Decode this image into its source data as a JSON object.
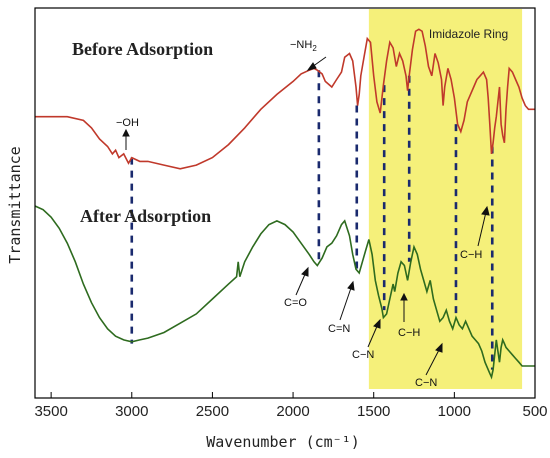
{
  "chart_data": {
    "type": "line",
    "xlabel": "Wavenumber (cm⁻¹)",
    "ylabel": "Transmittance",
    "xlim": [
      3600,
      500
    ],
    "x_reversed": true,
    "x_ticks": [
      3500,
      3000,
      2500,
      2000,
      1500,
      1000,
      500
    ],
    "y_ticks_shown": false,
    "grid": false,
    "region": {
      "label": "Imidazole Ring",
      "x_from": 1530,
      "x_to": 580,
      "color": "#f5f07a"
    },
    "series": [
      {
        "name": "Before Adsorption",
        "color": "#c0392b",
        "points": [
          [
            3600,
            0.52
          ],
          [
            3500,
            0.52
          ],
          [
            3400,
            0.52
          ],
          [
            3300,
            0.54
          ],
          [
            3250,
            0.58
          ],
          [
            3200,
            0.64
          ],
          [
            3150,
            0.68
          ],
          [
            3120,
            0.72
          ],
          [
            3100,
            0.7
          ],
          [
            3080,
            0.74
          ],
          [
            3050,
            0.72
          ],
          [
            3020,
            0.77
          ],
          [
            3000,
            0.74
          ],
          [
            2950,
            0.76
          ],
          [
            2900,
            0.76
          ],
          [
            2800,
            0.78
          ],
          [
            2700,
            0.8
          ],
          [
            2600,
            0.78
          ],
          [
            2500,
            0.74
          ],
          [
            2400,
            0.67
          ],
          [
            2300,
            0.58
          ],
          [
            2200,
            0.48
          ],
          [
            2100,
            0.4
          ],
          [
            2000,
            0.33
          ],
          [
            1950,
            0.29
          ],
          [
            1900,
            0.27
          ],
          [
            1870,
            0.26
          ],
          [
            1850,
            0.27
          ],
          [
            1820,
            0.29
          ],
          [
            1800,
            0.33
          ],
          [
            1760,
            0.36
          ],
          [
            1730,
            0.32
          ],
          [
            1700,
            0.28
          ],
          [
            1680,
            0.2
          ],
          [
            1650,
            0.18
          ],
          [
            1630,
            0.22
          ],
          [
            1610,
            0.36
          ],
          [
            1600,
            0.46
          ],
          [
            1590,
            0.4
          ],
          [
            1580,
            0.3
          ],
          [
            1560,
            0.2
          ],
          [
            1540,
            0.1
          ],
          [
            1520,
            0.12
          ],
          [
            1500,
            0.3
          ],
          [
            1480,
            0.44
          ],
          [
            1460,
            0.5
          ],
          [
            1440,
            0.35
          ],
          [
            1420,
            0.22
          ],
          [
            1400,
            0.12
          ],
          [
            1380,
            0.15
          ],
          [
            1360,
            0.25
          ],
          [
            1340,
            0.18
          ],
          [
            1320,
            0.22
          ],
          [
            1300,
            0.3
          ],
          [
            1290,
            0.38
          ],
          [
            1280,
            0.3
          ],
          [
            1260,
            0.16
          ],
          [
            1240,
            0.06
          ],
          [
            1220,
            0.05
          ],
          [
            1200,
            0.06
          ],
          [
            1180,
            0.14
          ],
          [
            1160,
            0.25
          ],
          [
            1140,
            0.3
          ],
          [
            1130,
            0.24
          ],
          [
            1120,
            0.18
          ],
          [
            1100,
            0.23
          ],
          [
            1080,
            0.32
          ],
          [
            1070,
            0.46
          ],
          [
            1060,
            0.36
          ],
          [
            1040,
            0.26
          ],
          [
            1020,
            0.32
          ],
          [
            1000,
            0.42
          ],
          [
            980,
            0.56
          ],
          [
            960,
            0.6
          ],
          [
            940,
            0.54
          ],
          [
            920,
            0.44
          ],
          [
            900,
            0.4
          ],
          [
            880,
            0.36
          ],
          [
            860,
            0.32
          ],
          [
            840,
            0.3
          ],
          [
            820,
            0.28
          ],
          [
            800,
            0.32
          ],
          [
            790,
            0.42
          ],
          [
            780,
            0.56
          ],
          [
            770,
            0.72
          ],
          [
            760,
            0.66
          ],
          [
            750,
            0.58
          ],
          [
            740,
            0.52
          ],
          [
            730,
            0.44
          ],
          [
            720,
            0.36
          ],
          [
            710,
            0.56
          ],
          [
            700,
            0.62
          ],
          [
            690,
            0.66
          ],
          [
            680,
            0.48
          ],
          [
            670,
            0.36
          ],
          [
            660,
            0.26
          ],
          [
            640,
            0.28
          ],
          [
            620,
            0.32
          ],
          [
            600,
            0.36
          ],
          [
            580,
            0.42
          ],
          [
            560,
            0.46
          ],
          [
            540,
            0.48
          ],
          [
            520,
            0.48
          ],
          [
            500,
            0.48
          ]
        ]
      },
      {
        "name": "After Adsorption",
        "color": "#2e6b1f",
        "points": [
          [
            3600,
            1.0
          ],
          [
            3550,
            1.02
          ],
          [
            3500,
            1.06
          ],
          [
            3450,
            1.12
          ],
          [
            3400,
            1.2
          ],
          [
            3350,
            1.3
          ],
          [
            3300,
            1.42
          ],
          [
            3250,
            1.52
          ],
          [
            3200,
            1.6
          ],
          [
            3150,
            1.66
          ],
          [
            3100,
            1.7
          ],
          [
            3050,
            1.72
          ],
          [
            3000,
            1.73
          ],
          [
            2950,
            1.72
          ],
          [
            2900,
            1.71
          ],
          [
            2800,
            1.68
          ],
          [
            2700,
            1.63
          ],
          [
            2600,
            1.58
          ],
          [
            2500,
            1.5
          ],
          [
            2400,
            1.42
          ],
          [
            2350,
            1.38
          ],
          [
            2340,
            1.3
          ],
          [
            2330,
            1.38
          ],
          [
            2300,
            1.3
          ],
          [
            2250,
            1.22
          ],
          [
            2200,
            1.15
          ],
          [
            2150,
            1.1
          ],
          [
            2100,
            1.08
          ],
          [
            2050,
            1.1
          ],
          [
            2000,
            1.14
          ],
          [
            1950,
            1.2
          ],
          [
            1900,
            1.26
          ],
          [
            1870,
            1.3
          ],
          [
            1850,
            1.32
          ],
          [
            1820,
            1.28
          ],
          [
            1790,
            1.22
          ],
          [
            1760,
            1.2
          ],
          [
            1730,
            1.16
          ],
          [
            1700,
            1.1
          ],
          [
            1680,
            1.08
          ],
          [
            1650,
            1.16
          ],
          [
            1630,
            1.26
          ],
          [
            1610,
            1.34
          ],
          [
            1590,
            1.36
          ],
          [
            1570,
            1.3
          ],
          [
            1550,
            1.24
          ],
          [
            1530,
            1.18
          ],
          [
            1510,
            1.26
          ],
          [
            1490,
            1.4
          ],
          [
            1470,
            1.48
          ],
          [
            1450,
            1.55
          ],
          [
            1440,
            1.6
          ],
          [
            1420,
            1.58
          ],
          [
            1400,
            1.5
          ],
          [
            1380,
            1.42
          ],
          [
            1370,
            1.46
          ],
          [
            1350,
            1.36
          ],
          [
            1330,
            1.3
          ],
          [
            1310,
            1.32
          ],
          [
            1290,
            1.4
          ],
          [
            1270,
            1.3
          ],
          [
            1250,
            1.22
          ],
          [
            1230,
            1.26
          ],
          [
            1210,
            1.34
          ],
          [
            1190,
            1.4
          ],
          [
            1170,
            1.46
          ],
          [
            1150,
            1.4
          ],
          [
            1130,
            1.5
          ],
          [
            1110,
            1.56
          ],
          [
            1090,
            1.62
          ],
          [
            1070,
            1.6
          ],
          [
            1050,
            1.56
          ],
          [
            1030,
            1.62
          ],
          [
            1010,
            1.66
          ],
          [
            990,
            1.6
          ],
          [
            970,
            1.64
          ],
          [
            950,
            1.66
          ],
          [
            930,
            1.62
          ],
          [
            910,
            1.66
          ],
          [
            890,
            1.7
          ],
          [
            870,
            1.72
          ],
          [
            850,
            1.74
          ],
          [
            830,
            1.78
          ],
          [
            810,
            1.84
          ],
          [
            790,
            1.88
          ],
          [
            780,
            1.9
          ],
          [
            770,
            1.92
          ],
          [
            760,
            1.88
          ],
          [
            750,
            1.8
          ],
          [
            740,
            1.72
          ],
          [
            730,
            1.78
          ],
          [
            720,
            1.84
          ],
          [
            710,
            1.76
          ],
          [
            700,
            1.72
          ],
          [
            690,
            1.74
          ],
          [
            680,
            1.76
          ],
          [
            660,
            1.78
          ],
          [
            640,
            1.8
          ],
          [
            620,
            1.82
          ],
          [
            600,
            1.84
          ],
          [
            580,
            1.86
          ],
          [
            560,
            1.86
          ],
          [
            540,
            1.86
          ],
          [
            520,
            1.86
          ],
          [
            500,
            1.86
          ]
        ]
      }
    ],
    "annotations": [
      {
        "text": "−OH",
        "x": 3000,
        "line_from": 0.74,
        "line_to": 1.74
      },
      {
        "text": "−NH",
        "sub": "2",
        "x": 1840,
        "line_from": 0.27,
        "line_to": 1.3
      },
      {
        "text": "C=O",
        "x": 1850
      },
      {
        "text": "C=N",
        "x": 1605
      },
      {
        "text": "C−N",
        "x": 1435
      },
      {
        "text": "C−H",
        "x": 1280
      },
      {
        "text": "C−N",
        "x": 990
      },
      {
        "text": "C−H",
        "x": 765
      }
    ],
    "marker_lines": [
      {
        "x": 1605,
        "from": 0.46,
        "to": 1.34
      },
      {
        "x": 1435,
        "from": 0.35,
        "to": 1.56
      },
      {
        "x": 1280,
        "from": 0.3,
        "to": 1.3
      },
      {
        "x": 990,
        "from": 0.56,
        "to": 1.6
      },
      {
        "x": 765,
        "from": 0.68,
        "to": 1.88
      }
    ]
  }
}
